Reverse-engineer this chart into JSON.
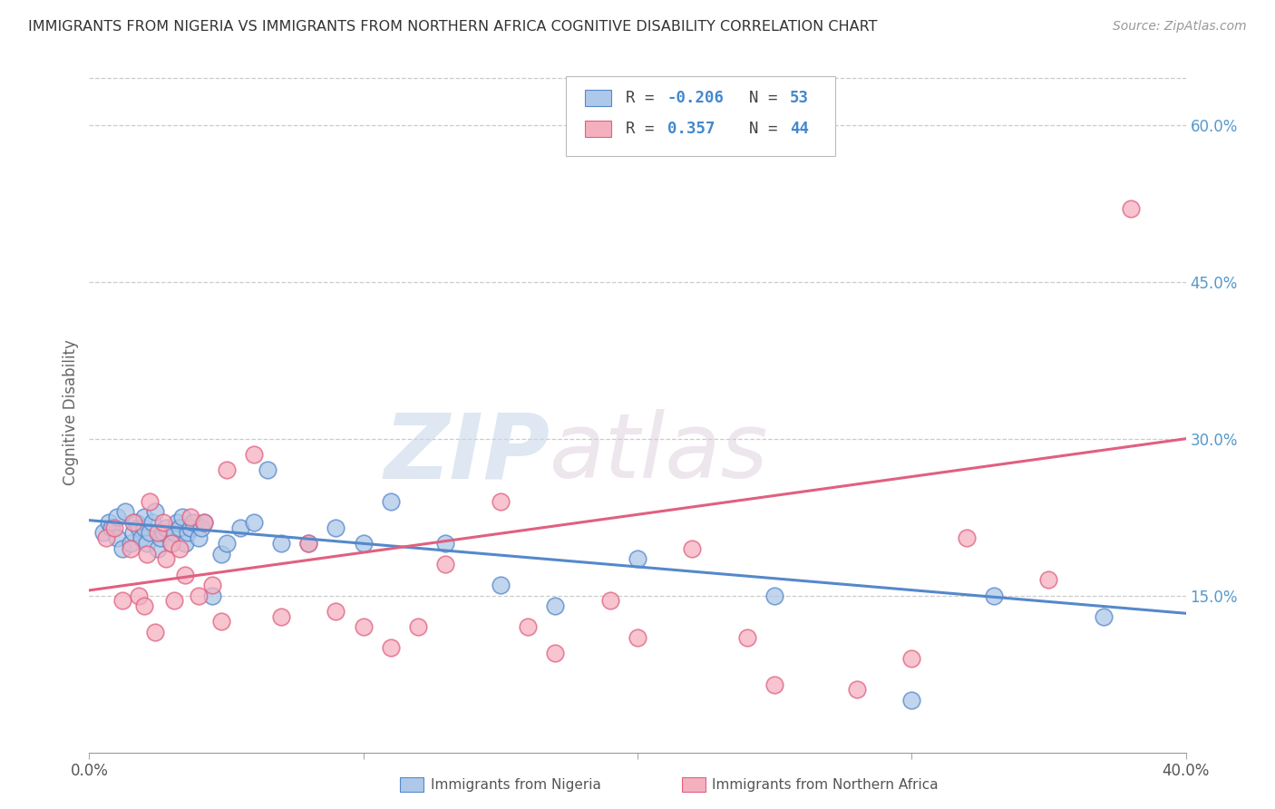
{
  "title": "IMMIGRANTS FROM NIGERIA VS IMMIGRANTS FROM NORTHERN AFRICA COGNITIVE DISABILITY CORRELATION CHART",
  "source": "Source: ZipAtlas.com",
  "ylabel": "Cognitive Disability",
  "legend_label1": "Immigrants from Nigeria",
  "legend_label2": "Immigrants from Northern Africa",
  "R1": -0.206,
  "N1": 53,
  "R2": 0.357,
  "N2": 44,
  "color1": "#adc8e8",
  "color2": "#f5b0c0",
  "line_color1": "#5588cc",
  "line_color2": "#e06080",
  "background_color": "#ffffff",
  "watermark_zip": "ZIP",
  "watermark_atlas": "atlas",
  "xmin": 0.0,
  "xmax": 0.4,
  "ymin": 0.0,
  "ymax": 0.65,
  "yticks": [
    0.15,
    0.3,
    0.45,
    0.6
  ],
  "xticks_show": [
    0.0,
    0.4
  ],
  "xticks_minor": [
    0.1,
    0.2,
    0.3
  ],
  "nigeria_x": [
    0.005,
    0.007,
    0.008,
    0.01,
    0.01,
    0.012,
    0.013,
    0.015,
    0.016,
    0.017,
    0.018,
    0.019,
    0.02,
    0.02,
    0.021,
    0.022,
    0.023,
    0.024,
    0.025,
    0.026,
    0.027,
    0.028,
    0.03,
    0.031,
    0.032,
    0.033,
    0.034,
    0.035,
    0.036,
    0.037,
    0.038,
    0.04,
    0.041,
    0.042,
    0.045,
    0.048,
    0.05,
    0.055,
    0.06,
    0.065,
    0.07,
    0.08,
    0.09,
    0.1,
    0.11,
    0.13,
    0.15,
    0.17,
    0.2,
    0.25,
    0.3,
    0.33,
    0.37
  ],
  "nigeria_y": [
    0.21,
    0.22,
    0.215,
    0.205,
    0.225,
    0.195,
    0.23,
    0.2,
    0.21,
    0.22,
    0.215,
    0.205,
    0.215,
    0.225,
    0.2,
    0.21,
    0.22,
    0.23,
    0.195,
    0.205,
    0.21,
    0.215,
    0.2,
    0.21,
    0.22,
    0.215,
    0.225,
    0.2,
    0.21,
    0.215,
    0.22,
    0.205,
    0.215,
    0.22,
    0.15,
    0.19,
    0.2,
    0.215,
    0.22,
    0.27,
    0.2,
    0.2,
    0.215,
    0.2,
    0.24,
    0.2,
    0.16,
    0.14,
    0.185,
    0.15,
    0.05,
    0.15,
    0.13
  ],
  "north_africa_x": [
    0.006,
    0.009,
    0.012,
    0.015,
    0.016,
    0.018,
    0.02,
    0.021,
    0.022,
    0.024,
    0.025,
    0.027,
    0.028,
    0.03,
    0.031,
    0.033,
    0.035,
    0.037,
    0.04,
    0.042,
    0.045,
    0.048,
    0.05,
    0.06,
    0.07,
    0.08,
    0.09,
    0.1,
    0.11,
    0.12,
    0.13,
    0.15,
    0.16,
    0.17,
    0.19,
    0.2,
    0.22,
    0.24,
    0.25,
    0.28,
    0.3,
    0.32,
    0.35,
    0.38
  ],
  "north_africa_y": [
    0.205,
    0.215,
    0.145,
    0.195,
    0.22,
    0.15,
    0.14,
    0.19,
    0.24,
    0.115,
    0.21,
    0.22,
    0.185,
    0.2,
    0.145,
    0.195,
    0.17,
    0.225,
    0.15,
    0.22,
    0.16,
    0.125,
    0.27,
    0.285,
    0.13,
    0.2,
    0.135,
    0.12,
    0.1,
    0.12,
    0.18,
    0.24,
    0.12,
    0.095,
    0.145,
    0.11,
    0.195,
    0.11,
    0.065,
    0.06,
    0.09,
    0.205,
    0.165,
    0.52
  ],
  "blue_line_x0": 0.0,
  "blue_line_y0": 0.222,
  "blue_line_x1": 0.4,
  "blue_line_y1": 0.133,
  "pink_line_x0": 0.0,
  "pink_line_y0": 0.155,
  "pink_line_x1": 0.4,
  "pink_line_y1": 0.3
}
